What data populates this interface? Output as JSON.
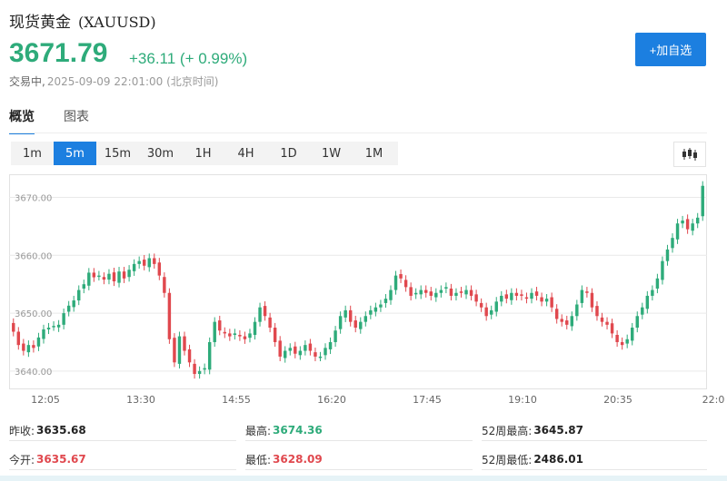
{
  "header": {
    "name": "现货黄金",
    "code": "(XAUUSD)",
    "price": "3671.79",
    "change": "+36.11 (+ 0.99%)",
    "status": "交易中,",
    "time": "2025-09-09 22:01:00 (北京时间)",
    "add_label": "+加自选"
  },
  "tabs": [
    "概览",
    "图表"
  ],
  "periods": [
    "1m",
    "5m",
    "15m",
    "30m",
    "1H",
    "4H",
    "1D",
    "1W",
    "1M"
  ],
  "active_period": "5m",
  "chart_data": {
    "type": "candlestick",
    "interval": "5m",
    "ylim": [
      3637,
      3674
    ],
    "yticks": [
      "3670.00",
      "3660.00",
      "3650.00",
      "3640.00"
    ],
    "xticks": [
      "12:05",
      "13:30",
      "14:55",
      "16:20",
      "17:45",
      "19:10",
      "20:35",
      "22:0"
    ],
    "colors": {
      "up": "#2eab7a",
      "down": "#e0484e"
    },
    "closes": [
      3646.8,
      3644.5,
      3643.5,
      3644.5,
      3644.0,
      3645.8,
      3647.2,
      3647.5,
      3647.8,
      3648.0,
      3650.0,
      3651.3,
      3652.2,
      3654.0,
      3655.0,
      3657.0,
      3656.2,
      3656.5,
      3655.8,
      3656.8,
      3655.5,
      3657.2,
      3656.0,
      3657.5,
      3658.5,
      3659.0,
      3658.2,
      3659.5,
      3658.5,
      3656.5,
      3653.5,
      3645.5,
      3641.5,
      3646.0,
      3643.5,
      3641.5,
      3639.5,
      3640.0,
      3640.5,
      3645.0,
      3648.5,
      3647.0,
      3646.5,
      3646.0,
      3646.5,
      3646.0,
      3645.5,
      3646.5,
      3648.5,
      3651.0,
      3649.5,
      3647.5,
      3645.0,
      3642.5,
      3643.5,
      3644.0,
      3643.0,
      3643.5,
      3644.5,
      3643.5,
      3642.5,
      3642.5,
      3644.0,
      3645.0,
      3647.0,
      3649.5,
      3650.5,
      3648.5,
      3647.5,
      3648.5,
      3649.5,
      3650.5,
      3651.0,
      3651.5,
      3652.5,
      3654.0,
      3656.5,
      3656.0,
      3654.5,
      3653.0,
      3653.5,
      3654.0,
      3653.5,
      3653.0,
      3653.5,
      3654.0,
      3654.5,
      3653.0,
      3653.5,
      3653.5,
      3654.0,
      3653.0,
      3652.0,
      3651.0,
      3649.5,
      3650.5,
      3652.0,
      3653.0,
      3652.5,
      3653.5,
      3653.0,
      3653.0,
      3652.5,
      3653.5,
      3653.0,
      3652.0,
      3652.5,
      3651.0,
      3649.0,
      3648.5,
      3648.0,
      3649.5,
      3651.5,
      3654.0,
      3653.5,
      3651.0,
      3649.5,
      3648.5,
      3648.0,
      3646.5,
      3645.0,
      3644.5,
      3645.5,
      3647.5,
      3649.5,
      3651.0,
      3653.0,
      3654.0,
      3656.0,
      3659.0,
      3661.0,
      3663.0,
      3665.5,
      3666.0,
      3664.5,
      3665.5,
      3666.5,
      3672.0
    ]
  },
  "stats": [
    [
      {
        "label": "昨收:",
        "value": "3635.68",
        "tone": ""
      },
      {
        "label": "最高:",
        "value": "3674.36",
        "tone": "green"
      },
      {
        "label": "52周最高:",
        "value": "3645.87",
        "tone": ""
      }
    ],
    [
      {
        "label": "今开:",
        "value": "3635.67",
        "tone": "red"
      },
      {
        "label": "最低:",
        "value": "3628.09",
        "tone": "red"
      },
      {
        "label": "52周最低:",
        "value": "2486.01",
        "tone": ""
      }
    ]
  ]
}
